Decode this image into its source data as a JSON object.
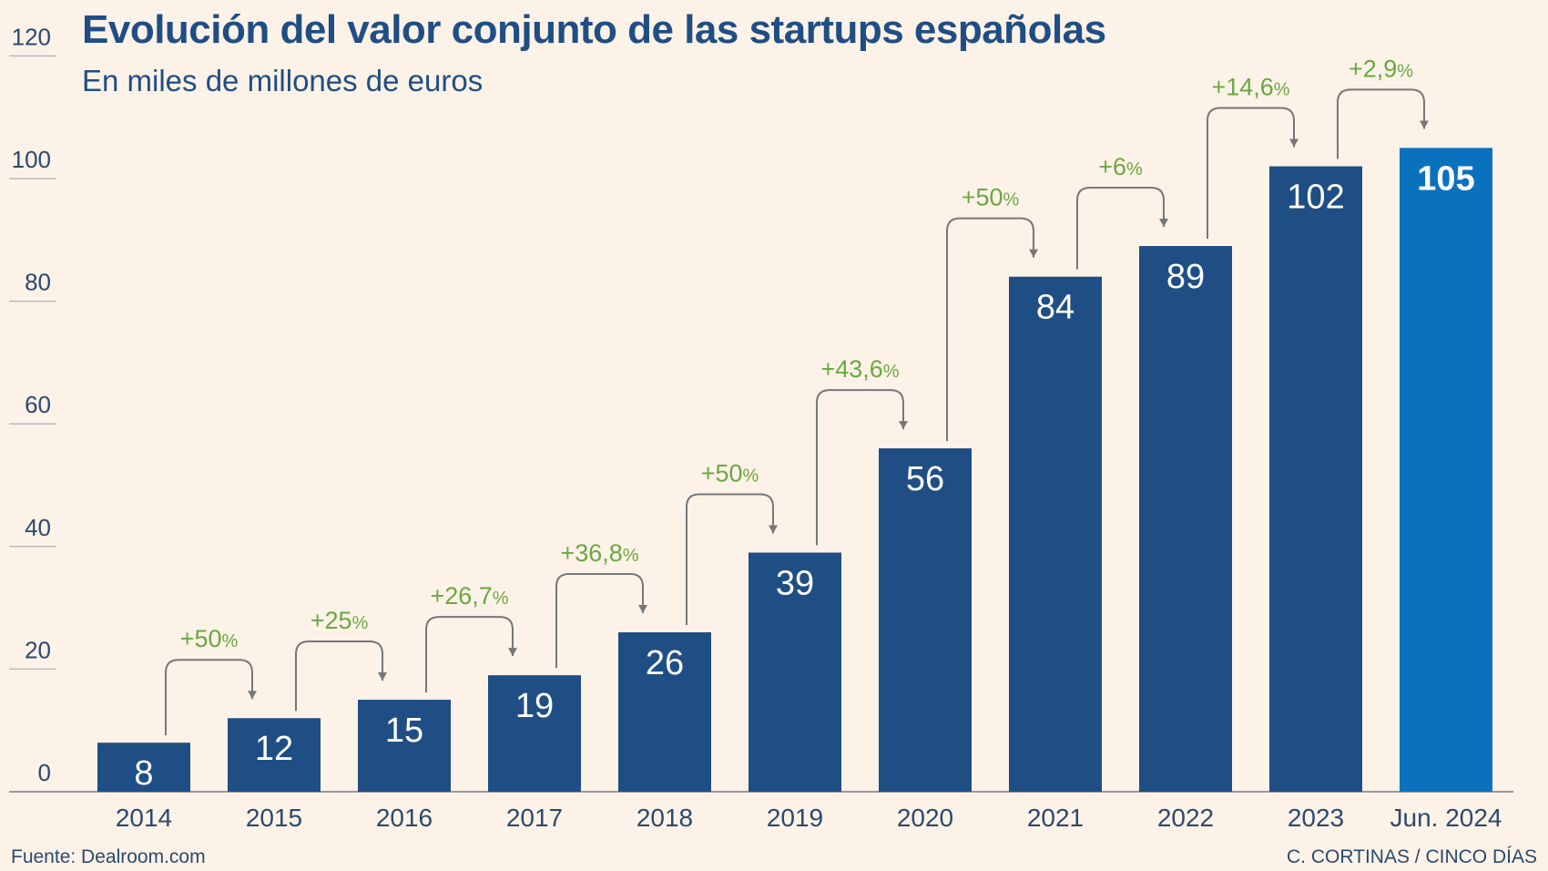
{
  "title": "Evolución del valor conjunto de las startups españolas",
  "subtitle": "En miles de millones de euros",
  "source": "Fuente: Dealroom.com",
  "credit": "C. CORTINAS / CINCO DÍAS",
  "colors": {
    "background": "#fdf2e7",
    "bar": "#1f4e84",
    "bar_highlight": "#0a72bd",
    "growth_label": "#6aa842",
    "arrow": "#777777",
    "axis_text": "#2a4a6e"
  },
  "chart_data": {
    "type": "bar",
    "title": "Evolución del valor conjunto de las startups españolas",
    "subtitle": "En miles de millones de euros",
    "categories": [
      "2014",
      "2015",
      "2016",
      "2017",
      "2018",
      "2019",
      "2020",
      "2021",
      "2022",
      "2023",
      "Jun. 2024"
    ],
    "values": [
      8,
      12,
      15,
      19,
      26,
      39,
      56,
      84,
      89,
      102,
      105
    ],
    "value_labels": [
      "8",
      "12",
      "15",
      "19",
      "26",
      "39",
      "56",
      "84",
      "89",
      "102",
      "105"
    ],
    "highlight_index": 10,
    "growth_labels": [
      "+50",
      "+25",
      "+26,7",
      "+36,8",
      "+50",
      "+43,6",
      "+50",
      "+6",
      "+14,6",
      "+2,9"
    ],
    "growth_unit": "%",
    "yticks": [
      "0",
      "20",
      "40",
      "60",
      "80",
      "100",
      "120"
    ],
    "ylim": [
      0,
      120
    ],
    "grid": false,
    "xlabel": "",
    "ylabel": ""
  }
}
